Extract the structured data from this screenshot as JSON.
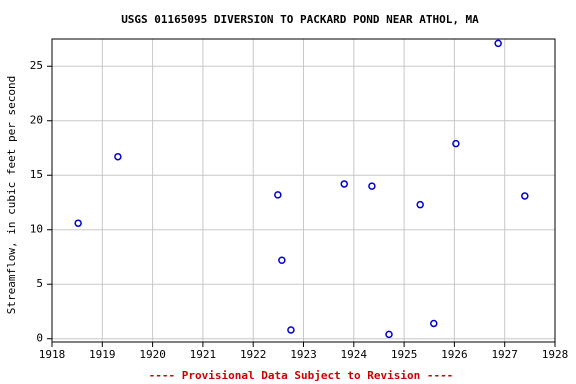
{
  "chart_data": {
    "type": "scatter",
    "title": "USGS 01165095 DIVERSION TO PACKARD POND NEAR ATHOL, MA",
    "y_label": "Streamflow, in cubic feet per second",
    "footnote": "---- Provisional Data Subject to Revision ----",
    "color": "#0000cc",
    "grid": true,
    "x": [
      1918.52,
      1919.31,
      1922.49,
      1922.57,
      1922.75,
      1923.81,
      1924.36,
      1924.7,
      1925.32,
      1925.59,
      1926.03,
      1926.87,
      1927.4
    ],
    "values": [
      10.6,
      16.7,
      13.2,
      7.2,
      0.8,
      14.2,
      14.0,
      0.4,
      12.3,
      1.4,
      17.9,
      27.1,
      13.1
    ],
    "xlim": [
      1918,
      1928
    ],
    "xticks": [
      1918,
      1919,
      1920,
      1921,
      1922,
      1923,
      1924,
      1925,
      1926,
      1927,
      1928
    ],
    "ylim": [
      -0.3,
      27.5
    ],
    "yticks": [
      0,
      5,
      10,
      15,
      20,
      25
    ]
  }
}
